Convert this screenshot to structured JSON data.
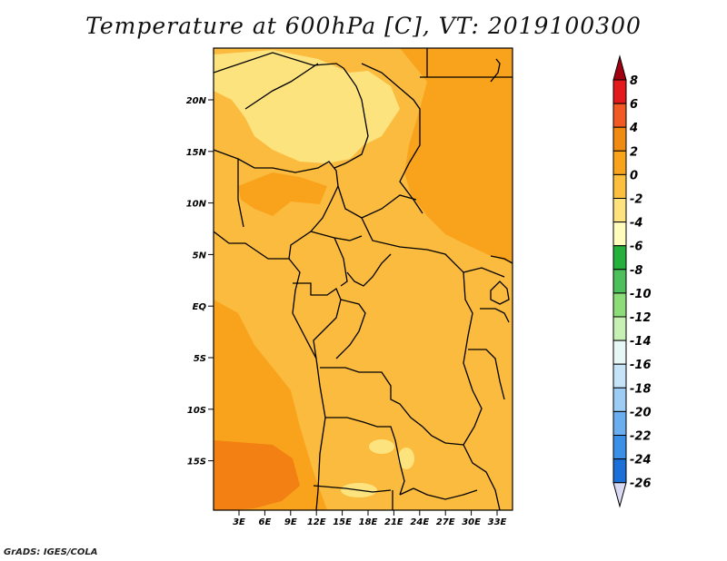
{
  "title": "Temperature at 600hPa [C], VT: 2019100300",
  "credit": "GrADS: IGES/COLA",
  "map": {
    "lat_labels": [
      "20N",
      "15N",
      "10N",
      "5N",
      "EQ",
      "5S",
      "10S",
      "15S"
    ],
    "lon_labels": [
      "3E",
      "6E",
      "9E",
      "12E",
      "15E",
      "18E",
      "21E",
      "24E",
      "27E",
      "30E",
      "33E"
    ]
  },
  "colorbar": {
    "labels": [
      "8",
      "6",
      "4",
      "2",
      "0",
      "-2",
      "-4",
      "-6",
      "-8",
      "-10",
      "-12",
      "-14",
      "-16",
      "-18",
      "-20",
      "-22",
      "-24",
      "-26"
    ],
    "colors": [
      "#a0000f",
      "#e31a1c",
      "#f15a22",
      "#f08a10",
      "#f8a31b",
      "#fdbf3e",
      "#fee27e",
      "#fffcbc",
      "#24b03b",
      "#4dc05b",
      "#8cdc7a",
      "#c7f0b5",
      "#e6f7f5",
      "#c6e4f8",
      "#9dccf4",
      "#6aaeef",
      "#3a8fe6",
      "#1b6fd8",
      "#0c52c2",
      "#0a3aa5",
      "#081f7a",
      "#d9d9f3"
    ]
  },
  "fill_colors": {
    "base": "#fbbb3f",
    "orange": "#f8a31b",
    "deep_orange": "#f28013",
    "pale": "#fde37e",
    "border": "#000000"
  }
}
